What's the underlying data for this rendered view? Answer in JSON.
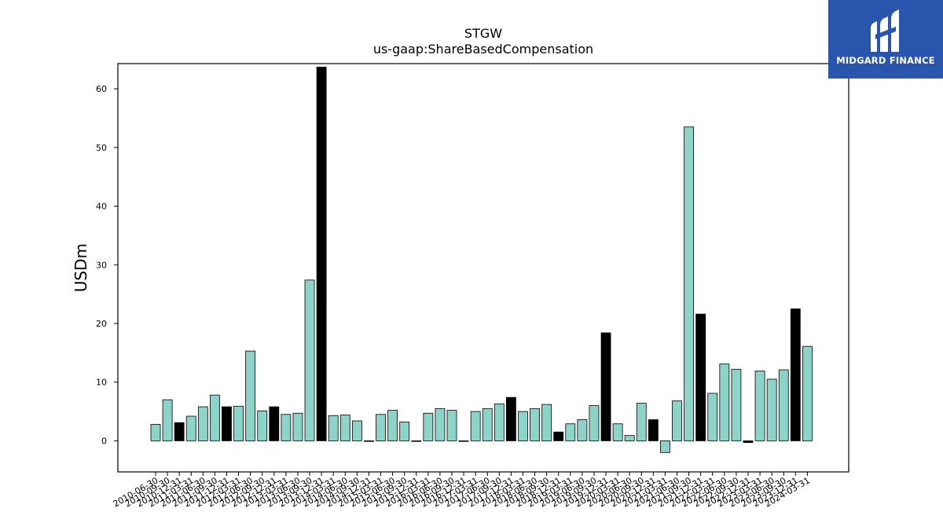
{
  "chart_data": {
    "type": "bar",
    "title": "STGW",
    "subtitle": "us-gaap:ShareBasedCompensation",
    "ylabel": "USDm",
    "xlabel": "",
    "ylim": [
      -5.3,
      64.3
    ],
    "yticks": [
      0,
      10,
      20,
      30,
      40,
      50,
      60
    ],
    "grid": false,
    "colors": {
      "quarter": "#8dd3c7",
      "annual": "#000000",
      "edge": "#000000"
    },
    "categories": [
      "2010-06-30",
      "2010-09-30",
      "2010-12-31",
      "2011-03-31",
      "2011-06-30",
      "2011-09-30",
      "2011-12-31",
      "2012-03-31",
      "2012-06-30",
      "2012-09-30",
      "2012-12-31",
      "2013-03-31",
      "2013-06-30",
      "2013-09-30",
      "2013-12-31",
      "2014-03-31",
      "2014-06-30",
      "2014-09-30",
      "2014-12-31",
      "2015-03-31",
      "2015-06-30",
      "2015-09-30",
      "2015-12-31",
      "2016-03-31",
      "2016-06-30",
      "2016-09-30",
      "2016-12-31",
      "2017-03-31",
      "2017-06-30",
      "2017-09-30",
      "2017-12-31",
      "2018-03-31",
      "2018-06-30",
      "2018-09-30",
      "2018-12-31",
      "2019-03-31",
      "2019-06-30",
      "2019-09-30",
      "2019-12-31",
      "2020-03-31",
      "2020-06-30",
      "2020-09-30",
      "2020-12-31",
      "2021-03-31",
      "2021-06-30",
      "2021-09-30",
      "2021-12-31",
      "2022-03-31",
      "2022-06-30",
      "2022-09-30",
      "2022-12-31",
      "2023-03-31",
      "2023-06-30",
      "2023-09-30",
      "2023-12-31",
      "2024-03-31"
    ],
    "values": [
      2.8,
      7.0,
      3.1,
      4.2,
      5.8,
      7.8,
      5.8,
      5.9,
      15.3,
      5.1,
      5.8,
      4.5,
      4.7,
      27.4,
      63.7,
      4.3,
      4.4,
      3.4,
      0.0,
      4.5,
      5.2,
      3.2,
      0.0,
      4.7,
      5.5,
      5.2,
      0.0,
      5.0,
      5.5,
      6.3,
      7.4,
      5.0,
      5.5,
      6.2,
      1.5,
      2.9,
      3.6,
      6.0,
      18.4,
      2.9,
      0.9,
      6.4,
      3.6,
      -2.0,
      6.8,
      53.5,
      21.6,
      8.1,
      13.1,
      12.2,
      -0.3,
      11.9,
      10.5,
      12.1,
      22.5,
      16.1
    ],
    "annual_flags": [
      false,
      false,
      true,
      false,
      false,
      false,
      true,
      false,
      false,
      false,
      true,
      false,
      false,
      false,
      true,
      false,
      false,
      false,
      false,
      false,
      false,
      false,
      false,
      false,
      false,
      false,
      false,
      false,
      false,
      false,
      true,
      false,
      false,
      false,
      true,
      false,
      false,
      false,
      true,
      false,
      false,
      false,
      true,
      false,
      false,
      false,
      true,
      false,
      false,
      false,
      true,
      false,
      false,
      false,
      true,
      false
    ]
  },
  "logo": {
    "text": "MIDGARD FINANCE"
  }
}
